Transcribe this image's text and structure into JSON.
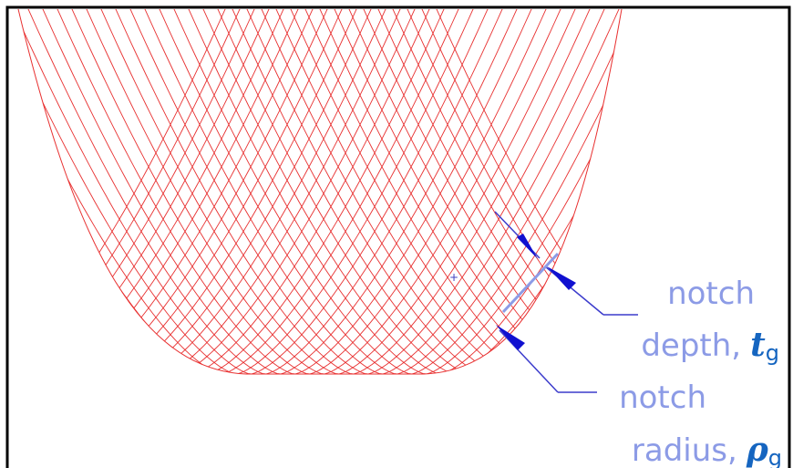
{
  "labels": [
    {
      "lines": [
        "notch",
        "depth,"
      ],
      "symbol": "t",
      "subscript": "g"
    },
    {
      "lines": [
        "notch",
        "radius,"
      ],
      "symbol": "ρ",
      "subscript": "g"
    }
  ]
}
